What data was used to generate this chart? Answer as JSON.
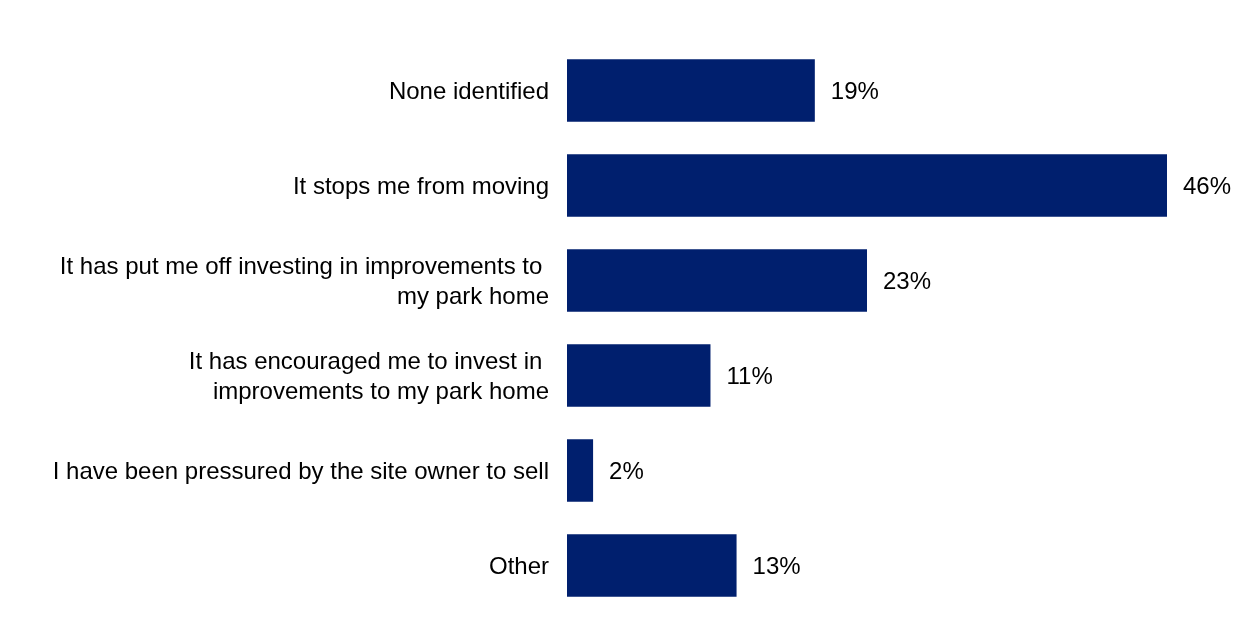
{
  "chart_data": {
    "type": "bar",
    "orientation": "horizontal",
    "categories": [
      "None identified",
      "It stops me from moving",
      "It has put me off investing in improvements to my park home",
      "It has encouraged me to invest in improvements to my park home",
      "I have been pressured by the site owner to sell",
      "Other"
    ],
    "values": [
      19,
      46,
      23,
      11,
      2,
      13
    ],
    "value_labels": [
      "19%",
      "46%",
      "23%",
      "11%",
      "2%",
      "13%"
    ],
    "color": "#001f6e",
    "grid": false
  }
}
